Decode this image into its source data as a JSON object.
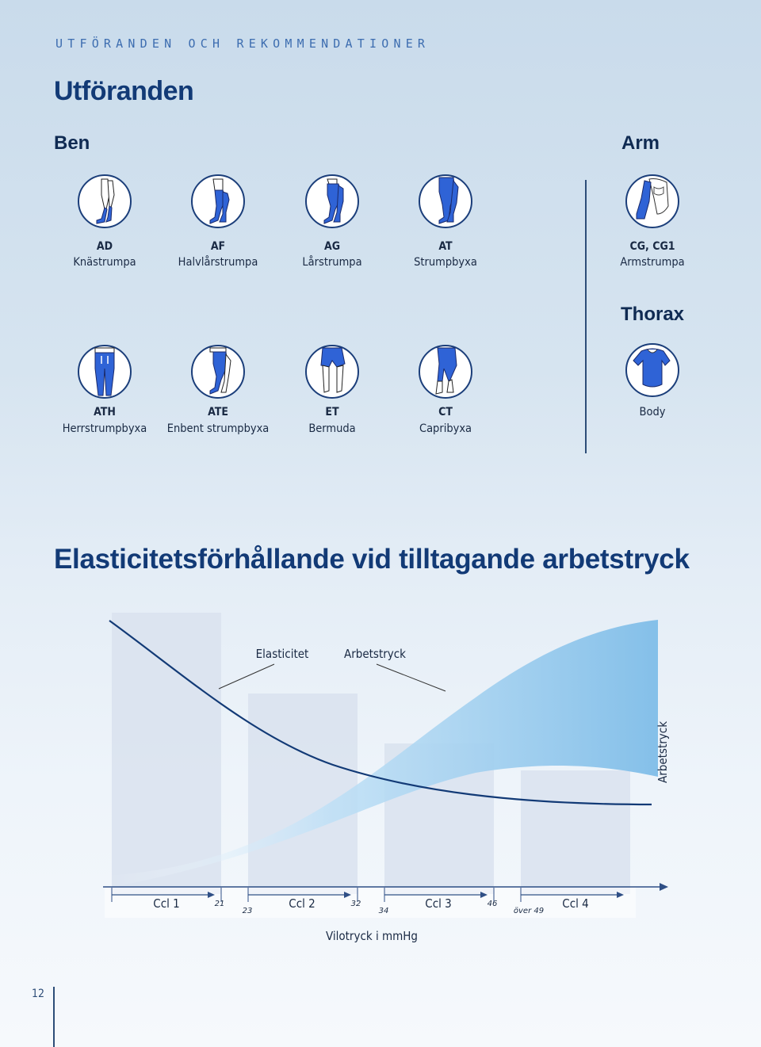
{
  "header": {
    "kicker": "UTFÖRANDEN OCH REKOMMENDATIONER",
    "title": "Utföranden"
  },
  "sections": {
    "ben": "Ben",
    "arm": "Arm",
    "thorax": "Thorax"
  },
  "ben_row1": [
    {
      "code": "AD",
      "label": "Knästrumpa",
      "icon": "knee-stocking-icon"
    },
    {
      "code": "AF",
      "label": "Halvlårstrumpa",
      "icon": "half-thigh-stocking-icon"
    },
    {
      "code": "AG",
      "label": "Lårstrumpa",
      "icon": "thigh-stocking-icon"
    },
    {
      "code": "AT",
      "label": "Strumpbyxa",
      "icon": "pantyhose-icon"
    }
  ],
  "ben_row2": [
    {
      "code": "ATH",
      "label": "Herrstrumpbyxa",
      "icon": "mens-pantyhose-icon"
    },
    {
      "code": "ATE",
      "label": "Enbent strumpbyxa",
      "icon": "single-leg-pantyhose-icon"
    },
    {
      "code": "ET",
      "label": "Bermuda",
      "icon": "bermuda-icon"
    },
    {
      "code": "CT",
      "label": "Capribyxa",
      "icon": "capri-icon"
    }
  ],
  "arm": {
    "code": "CG, CG1",
    "label": "Armstrumpa",
    "icon": "arm-sleeve-icon"
  },
  "thorax": {
    "label": "Body",
    "icon": "body-garment-icon"
  },
  "chart_title": "Elasticitetsförhållande vid tilltagande arbetstryck",
  "chart_data": {
    "type": "area",
    "categories": [
      "Ccl 1",
      "Ccl 2",
      "Ccl 3",
      "Ccl 4"
    ],
    "category_ranges": [
      [
        "",
        "21"
      ],
      [
        "23",
        "32"
      ],
      [
        "34",
        "46"
      ],
      [
        "över 49",
        ""
      ]
    ],
    "series": [
      {
        "name": "Elasticitet"
      },
      {
        "name": "Arbetstryck"
      }
    ],
    "xlabel": "Vilotryck i mmHg",
    "ylabel": "Arbetstryck",
    "colors": {
      "elasticitet_line": "#123a76",
      "arbetstryck_band": "#7fbde8",
      "bars": "#dde5ef"
    }
  },
  "footer": {
    "page": "12"
  }
}
